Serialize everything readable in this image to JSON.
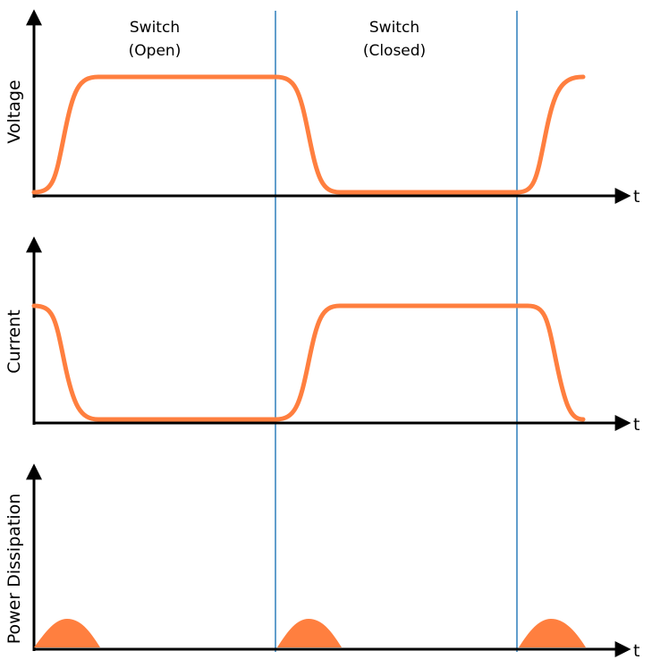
{
  "regions": {
    "open": {
      "line1": "Switch",
      "line2": "(Open)"
    },
    "closed": {
      "line1": "Switch",
      "line2": "(Closed)"
    }
  },
  "panels": [
    {
      "ylabel": "Voltage",
      "xlabel": "t"
    },
    {
      "ylabel": "Current",
      "xlabel": "t"
    },
    {
      "ylabel": "Power Dissipation",
      "xlabel": "t"
    }
  ],
  "colors": {
    "waveform": "#ff7f3f",
    "axis": "#000000",
    "divider": "#3a86c0"
  }
}
